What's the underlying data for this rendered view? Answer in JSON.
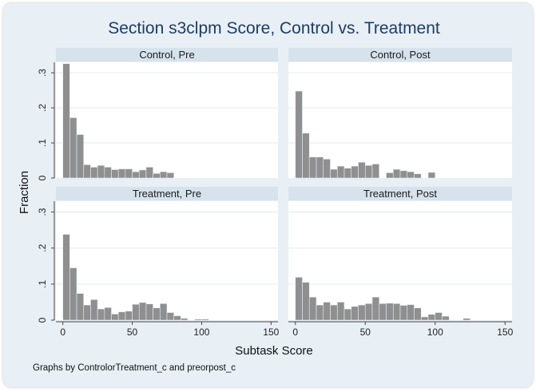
{
  "chart_data": {
    "type": "histogram",
    "title": "Section s3clpm Score, Control vs. Treatment",
    "xlabel": "Subtask Score",
    "ylabel": "Fraction",
    "note": "Graphs by ControlorTreatment_c and preorpost_c",
    "xlim": [
      -5,
      155
    ],
    "ylim": [
      0,
      0.33
    ],
    "bin_width": 5,
    "x_ticks": [
      0,
      50,
      100,
      150
    ],
    "y_ticks": [
      0,
      0.1,
      0.2,
      0.3
    ],
    "y_tick_labels": [
      "0",
      ".1",
      ".2",
      ".3"
    ],
    "grid": true,
    "bar_color": "#8f8f8f",
    "panels": [
      {
        "name": "Control, Pre",
        "bin_starts": [
          0,
          5,
          10,
          15,
          20,
          25,
          30,
          35,
          40,
          45,
          50,
          55,
          60,
          65,
          70,
          75
        ],
        "values": [
          0.326,
          0.172,
          0.124,
          0.038,
          0.031,
          0.036,
          0.031,
          0.024,
          0.026,
          0.026,
          0.018,
          0.023,
          0.031,
          0.013,
          0.018,
          0.015
        ]
      },
      {
        "name": "Control, Post",
        "bin_starts": [
          0,
          5,
          10,
          15,
          20,
          25,
          30,
          35,
          40,
          45,
          50,
          55,
          65,
          70,
          75,
          80,
          85,
          95
        ],
        "values": [
          0.248,
          0.128,
          0.06,
          0.06,
          0.054,
          0.025,
          0.034,
          0.028,
          0.034,
          0.045,
          0.036,
          0.04,
          0.015,
          0.025,
          0.021,
          0.018,
          0.012,
          0.016
        ]
      },
      {
        "name": "Treatment, Pre",
        "bin_starts": [
          0,
          5,
          10,
          15,
          20,
          25,
          30,
          35,
          40,
          45,
          50,
          55,
          60,
          65,
          70,
          75,
          80,
          85,
          95,
          100
        ],
        "values": [
          0.238,
          0.145,
          0.074,
          0.042,
          0.057,
          0.031,
          0.035,
          0.017,
          0.023,
          0.025,
          0.044,
          0.049,
          0.045,
          0.034,
          0.046,
          0.021,
          0.012,
          0.005,
          0.003,
          0.003
        ]
      },
      {
        "name": "Treatment, Post",
        "bin_starts": [
          0,
          5,
          10,
          15,
          20,
          25,
          30,
          35,
          40,
          45,
          50,
          55,
          60,
          65,
          70,
          75,
          80,
          85,
          90,
          95,
          100,
          105,
          120
        ],
        "values": [
          0.119,
          0.105,
          0.064,
          0.042,
          0.05,
          0.042,
          0.05,
          0.031,
          0.038,
          0.042,
          0.046,
          0.064,
          0.046,
          0.047,
          0.046,
          0.041,
          0.043,
          0.034,
          0.009,
          0.016,
          0.021,
          0.011,
          0.005
        ]
      }
    ]
  }
}
